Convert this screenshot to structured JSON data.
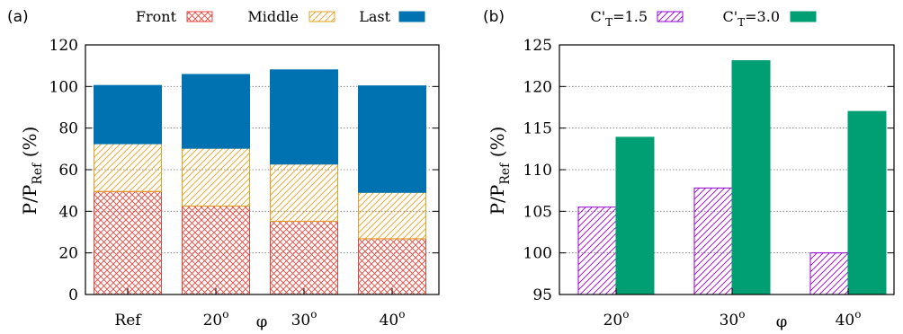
{
  "panels": {
    "a": {
      "tag": "(a)"
    },
    "b": {
      "tag": "(b)"
    }
  },
  "chart_data": [
    {
      "type": "bar",
      "stacked": true,
      "categories": [
        "Ref",
        "20",
        "30",
        "40"
      ],
      "category_superscripts": [
        "",
        "o",
        "o",
        "o"
      ],
      "xlabel": "φ",
      "ylabel": {
        "main": "P/P",
        "sub": "Ref",
        "tail": " (%)"
      },
      "ylim": [
        0,
        120
      ],
      "yticks": [
        0,
        20,
        40,
        60,
        80,
        100,
        120
      ],
      "grid": true,
      "legend": "top",
      "series": [
        {
          "name": "Front",
          "values": [
            49.5,
            42.5,
            35.2,
            26.8
          ],
          "color": "#e8453c",
          "fill": "crosshatch"
        },
        {
          "name": "Middle",
          "values": [
            23.0,
            27.8,
            27.5,
            22.3
          ],
          "color": "#e6a020",
          "fill": "diagonal"
        },
        {
          "name": "Last",
          "values": [
            28.0,
            35.5,
            45.3,
            51.2
          ],
          "color": "#0072b2",
          "fill": "solid"
        }
      ]
    },
    {
      "type": "bar",
      "categories": [
        "20",
        "30",
        "40"
      ],
      "category_superscripts": [
        "o",
        "o",
        "o"
      ],
      "xlabel": "φ",
      "ylabel": {
        "main": "P/P",
        "sub": "Ref",
        "tail": " (%)"
      },
      "ylim": [
        95,
        125
      ],
      "yticks": [
        95,
        100,
        105,
        110,
        115,
        120,
        125
      ],
      "grid": true,
      "legend": "top",
      "series": [
        {
          "name": {
            "main": "C'",
            "sub": "T",
            "tail": "=1.5"
          },
          "values": [
            105.5,
            107.8,
            100.0
          ],
          "color": "#9400d3",
          "fill": "diagonal"
        },
        {
          "name": {
            "main": "C'",
            "sub": "T",
            "tail": "=3.0"
          },
          "values": [
            113.9,
            123.1,
            117.0
          ],
          "color": "#009e73",
          "fill": "solid"
        }
      ]
    }
  ]
}
